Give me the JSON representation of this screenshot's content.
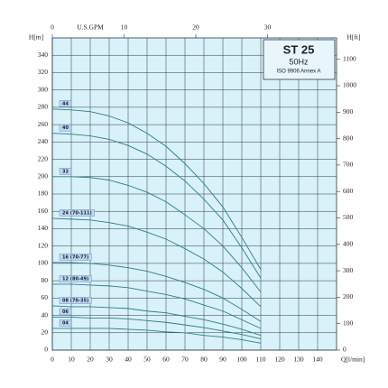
{
  "chart_data": {
    "type": "line",
    "x_label": "Q[l/min]",
    "y_label": "H[m]",
    "y2_label": "H[ft]",
    "x2_label": "U.S.GPM",
    "title": "ST 25",
    "subtitle": "50Hz",
    "note": "ISO 9906 Annex A",
    "x": [
      0,
      10,
      20,
      30,
      40,
      50,
      60,
      70,
      80,
      90,
      100,
      110
    ],
    "series": [
      {
        "name": "44",
        "color": "#2b7d8c",
        "values": [
          278,
          277,
          275,
          270,
          262,
          250,
          235,
          215,
          192,
          165,
          130,
          93
        ]
      },
      {
        "name": "40",
        "color": "#2b7d8c",
        "values": [
          250,
          249,
          247,
          243,
          236,
          226,
          212,
          195,
          174,
          150,
          118,
          83
        ]
      },
      {
        "name": "32",
        "color": "#2b7d8c",
        "values": [
          200,
          200,
          199,
          196,
          190,
          182,
          171,
          156,
          140,
          120,
          95,
          67
        ]
      },
      {
        "name": "24 (70-111)",
        "color": "#2b7d8c",
        "values": [
          152,
          151,
          150,
          147,
          143,
          136,
          128,
          117,
          105,
          90,
          71,
          50
        ]
      },
      {
        "name": "16 (70-77)",
        "color": "#2b7d8c",
        "values": [
          101,
          101,
          100,
          98,
          95,
          91,
          85,
          78,
          70,
          60,
          47,
          33
        ]
      },
      {
        "name": "12 (80-49)",
        "color": "#2b7d8c",
        "values": [
          76,
          76,
          75,
          74,
          72,
          68,
          64,
          59,
          52,
          45,
          35,
          25
        ]
      },
      {
        "name": "08 (70-35)",
        "color": "#2b7d8c",
        "values": [
          51,
          50,
          50,
          49,
          48,
          45,
          43,
          39,
          35,
          30,
          24,
          17
        ]
      },
      {
        "name": "06",
        "color": "#2b7d8c",
        "values": [
          38,
          38,
          37,
          37,
          36,
          34,
          32,
          29,
          26,
          22,
          18,
          13
        ]
      },
      {
        "name": "04",
        "color": "#2b7d8c",
        "values": [
          25,
          25,
          25,
          25,
          24,
          23,
          21,
          20,
          17,
          15,
          12,
          8
        ]
      }
    ],
    "xlim": [
      0,
      150
    ],
    "xticks": [
      0,
      10,
      20,
      30,
      40,
      50,
      60,
      70,
      80,
      90,
      100,
      110,
      120,
      130,
      140
    ],
    "ylim": [
      0,
      360
    ],
    "yticks": [
      0,
      20,
      40,
      60,
      80,
      100,
      120,
      140,
      160,
      180,
      200,
      220,
      240,
      260,
      280,
      300,
      320,
      340
    ],
    "y2lim": [
      0,
      1181
    ],
    "y2ticks": [
      0,
      100,
      200,
      300,
      400,
      500,
      600,
      700,
      800,
      900,
      1000,
      1100
    ],
    "x2lim": [
      0,
      39.63
    ],
    "x2ticks": [
      0,
      10,
      20,
      30
    ],
    "grid": true,
    "background": "#d9f1f8"
  }
}
